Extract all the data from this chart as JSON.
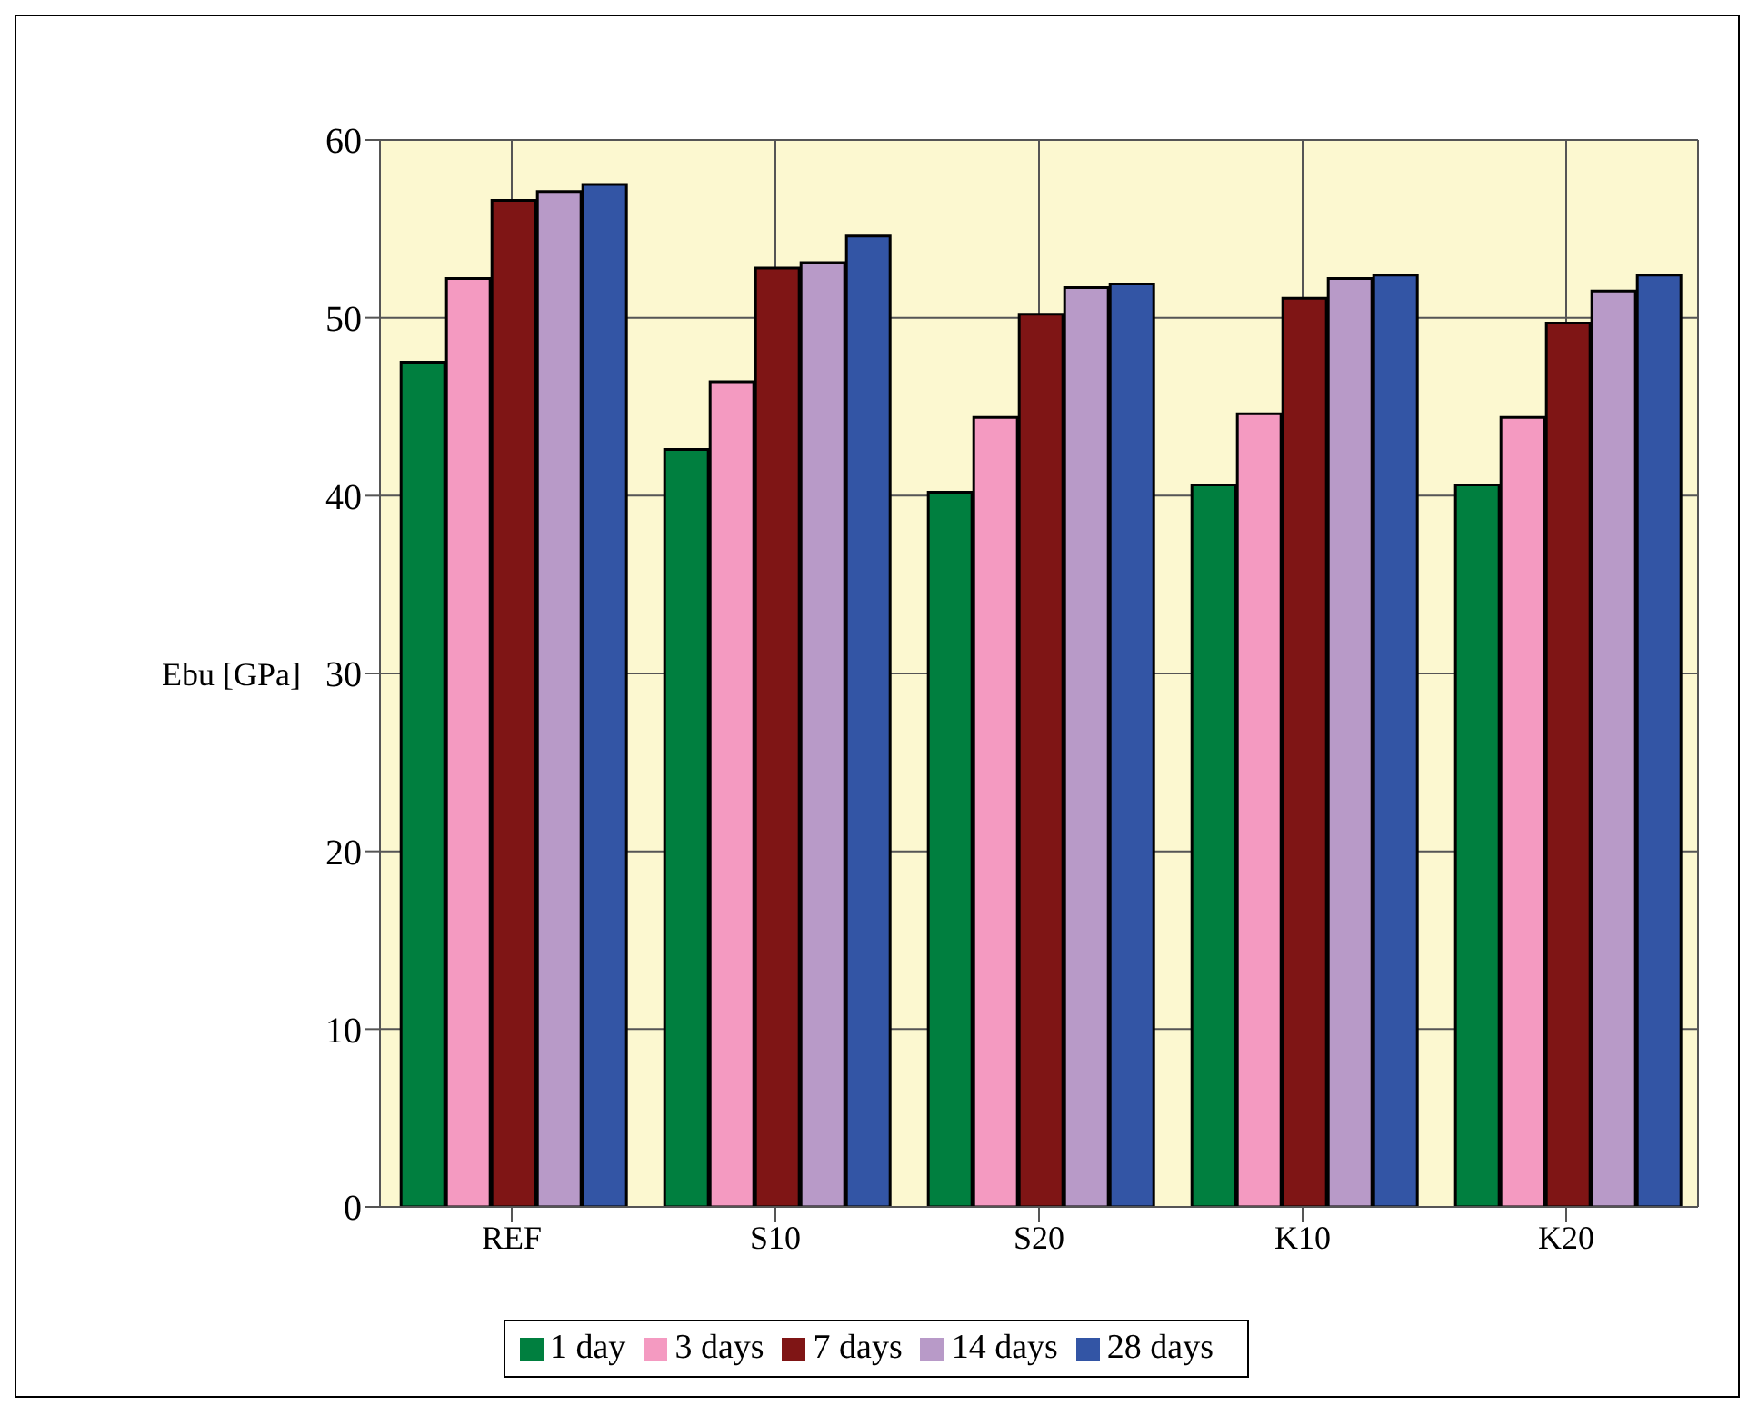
{
  "chart_data": {
    "type": "bar",
    "ylabel": "Ebu [GPa]",
    "categories": [
      "REF",
      "S10",
      "S20",
      "K10",
      "K20"
    ],
    "series": [
      {
        "name": "1 day",
        "color": "#007f3f",
        "values": [
          47.5,
          42.6,
          40.2,
          40.6,
          40.6
        ]
      },
      {
        "name": "3 days",
        "color": "#f49ac1",
        "values": [
          52.2,
          46.4,
          44.4,
          44.6,
          44.4
        ]
      },
      {
        "name": "7 days",
        "color": "#7f1515",
        "values": [
          56.6,
          52.8,
          50.2,
          51.1,
          49.7
        ]
      },
      {
        "name": "14 days",
        "color": "#b89ac8",
        "values": [
          57.1,
          53.1,
          51.7,
          52.2,
          51.5
        ]
      },
      {
        "name": "28 days",
        "color": "#3355a5",
        "values": [
          57.5,
          54.6,
          51.9,
          52.4,
          52.4
        ]
      }
    ],
    "ylim": [
      0,
      60
    ],
    "yticks": [
      0,
      10,
      20,
      30,
      40,
      50,
      60
    ],
    "grid": true,
    "legend": "bottom"
  }
}
